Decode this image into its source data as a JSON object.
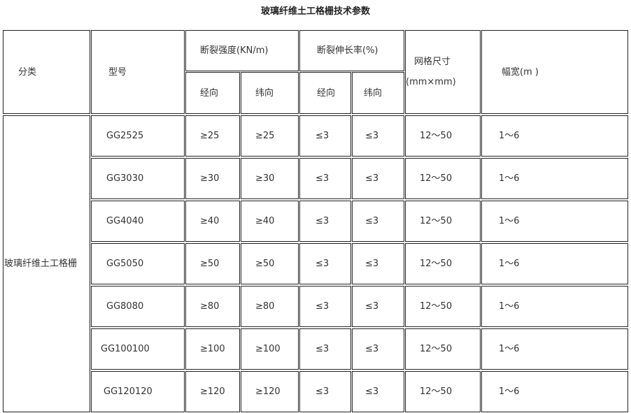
{
  "title": "玻璃纤维土工格栅技术参数",
  "header": {
    "category": "分类",
    "model": "型号",
    "strength": "断裂强度(KN/m)",
    "elongation": "断裂伸长率(%)",
    "mesh_line1": "网格尺寸",
    "mesh_line2": "(mm×mm)",
    "width": "幅宽(m )",
    "warp": "经向",
    "weft": "纬向"
  },
  "category_value": "玻璃纤维土工格栅",
  "rows": [
    {
      "model": "GG2525",
      "strength_warp": "≥25",
      "strength_weft": "≥25",
      "elong_warp": "≤3",
      "elong_weft": "≤3",
      "mesh": "12～50",
      "width": "1～6"
    },
    {
      "model": "GG3030",
      "strength_warp": "≥30",
      "strength_weft": "≥30",
      "elong_warp": "≤3",
      "elong_weft": "≤3",
      "mesh": "12～50",
      "width": "1～6"
    },
    {
      "model": "GG4040",
      "strength_warp": "≥40",
      "strength_weft": "≥40",
      "elong_warp": "≤3",
      "elong_weft": "≤3",
      "mesh": "12～50",
      "width": "1～6"
    },
    {
      "model": "GG5050",
      "strength_warp": "≥50",
      "strength_weft": "≥50",
      "elong_warp": "≤3",
      "elong_weft": "≤3",
      "mesh": "12～50",
      "width": "1～6"
    },
    {
      "model": "GG8080",
      "strength_warp": "≥80",
      "strength_weft": "≥80",
      "elong_warp": "≤3",
      "elong_weft": "≤3",
      "mesh": "12～50",
      "width": "1～6"
    },
    {
      "model": "GG100100",
      "strength_warp": "≥100",
      "strength_weft": "≥100",
      "elong_warp": "≤3",
      "elong_weft": "≤3",
      "mesh": "12～50",
      "width": "1～6"
    },
    {
      "model": "GG120120",
      "strength_warp": "≥120",
      "strength_weft": "≥120",
      "elong_warp": "≤3",
      "elong_weft": "≤3",
      "mesh": "12～50",
      "width": "1～6"
    }
  ]
}
